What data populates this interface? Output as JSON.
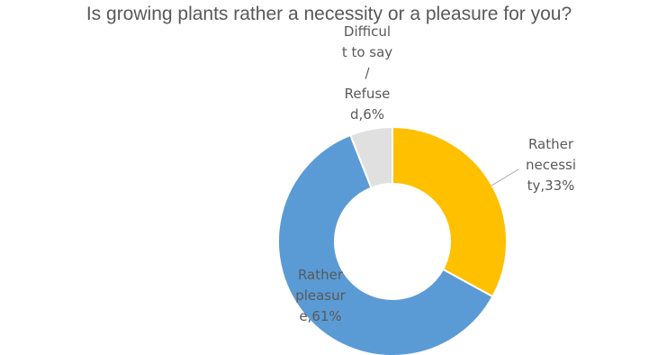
{
  "chart_data": {
    "type": "pie",
    "variant": "doughnut",
    "title": "Is growing plants rather a necessity or a pleasure for you?",
    "categories": [
      "Rather necessity",
      "Rather pleasure",
      "Difficult to say / Refused"
    ],
    "values": [
      33,
      61,
      6
    ],
    "unit": "%",
    "colors": [
      "#FFC000",
      "#5B9BD5",
      "#E0E0E0"
    ],
    "data_labels": [
      [
        "Rather",
        "necessi",
        "ty,33%"
      ],
      [
        "Rather",
        "pleasur",
        "e,61%"
      ],
      [
        "Difficul",
        "t to say",
        "/",
        "Refuse",
        "d,6%"
      ]
    ],
    "legend": "none"
  }
}
